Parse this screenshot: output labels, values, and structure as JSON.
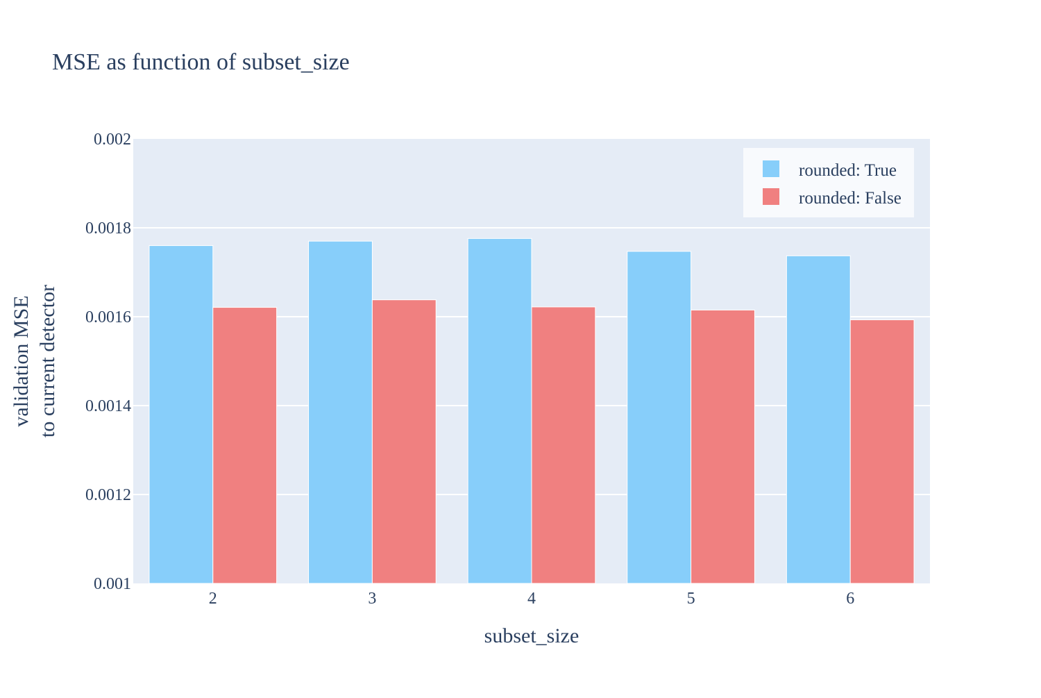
{
  "chart_data": {
    "type": "bar",
    "title": "MSE as function of subset_size",
    "xlabel": "subset_size",
    "ylabel_lines": [
      "validation MSE",
      "to current detector"
    ],
    "categories": [
      "2",
      "3",
      "4",
      "5",
      "6"
    ],
    "ylim": [
      0.001,
      0.002
    ],
    "yticks": [
      0.001,
      0.0012,
      0.0014,
      0.0016,
      0.0018,
      0.002
    ],
    "ytick_labels": [
      "0.001",
      "0.0012",
      "0.0014",
      "0.0016",
      "0.0018",
      "0.002"
    ],
    "grid": true,
    "legend_position": "top-right",
    "series": [
      {
        "name": "rounded: True",
        "color": "#87cefa",
        "values": [
          0.00176,
          0.00177,
          0.001776,
          0.001747,
          0.001737
        ]
      },
      {
        "name": "rounded: False",
        "color": "#f08080",
        "values": [
          0.001621,
          0.001638,
          0.001622,
          0.001615,
          0.001593
        ]
      }
    ]
  },
  "colors": {
    "plot_background": "#e5ecf6",
    "gridline": "#ffffff",
    "text": "#2a3f5f",
    "legend_background": "#f8fafd"
  }
}
